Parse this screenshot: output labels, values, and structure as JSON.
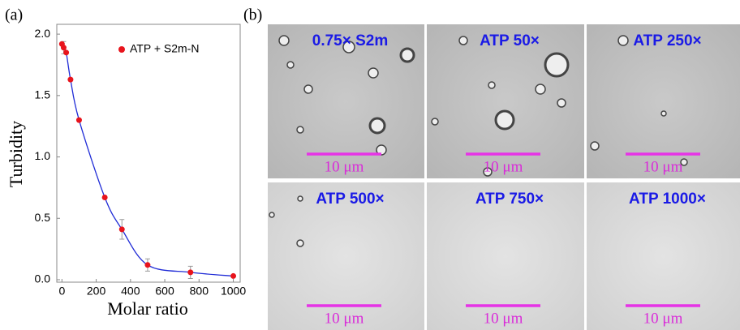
{
  "chart_data": {
    "type": "line",
    "panel_label": "(a)",
    "x_label": "Molar ratio",
    "y_label": "Turbidity",
    "x": [
      0,
      10,
      25,
      50,
      100,
      250,
      350,
      500,
      750,
      1000
    ],
    "series": [
      {
        "name": "ATP + S2m-N",
        "color": "#e8141c",
        "line_color": "#1f2bd6",
        "values": [
          1.92,
          1.89,
          1.85,
          1.63,
          1.3,
          0.67,
          0.41,
          0.12,
          0.06,
          0.03
        ],
        "errors": [
          null,
          0.05,
          null,
          null,
          null,
          null,
          0.08,
          0.05,
          0.05,
          null
        ]
      }
    ],
    "xlim": [
      -30,
      1040
    ],
    "ylim": [
      -0.02,
      2.08
    ],
    "xticks": [
      0,
      200,
      400,
      600,
      800,
      1000
    ],
    "yticks": [
      {
        "value": 0,
        "label": "0.0"
      },
      0.5,
      {
        "value": 1,
        "label": "1.0"
      },
      1.5,
      {
        "value": 2,
        "label": "2.0"
      }
    ],
    "legend": "upper right"
  },
  "images": {
    "panel_label": "(b)",
    "panels": [
      {
        "label": "0.75× S2m",
        "scale_bar": "10 μm"
      },
      {
        "label": "ATP 50×",
        "scale_bar": "10 μm"
      },
      {
        "label": "ATP 250×",
        "scale_bar": "10 μm"
      },
      {
        "label": "ATP 500×",
        "scale_bar": "10 μm"
      },
      {
        "label": "ATP 750×",
        "scale_bar": "10 μm"
      },
      {
        "label": "ATP 1000×",
        "scale_bar": "10 μm"
      }
    ]
  }
}
